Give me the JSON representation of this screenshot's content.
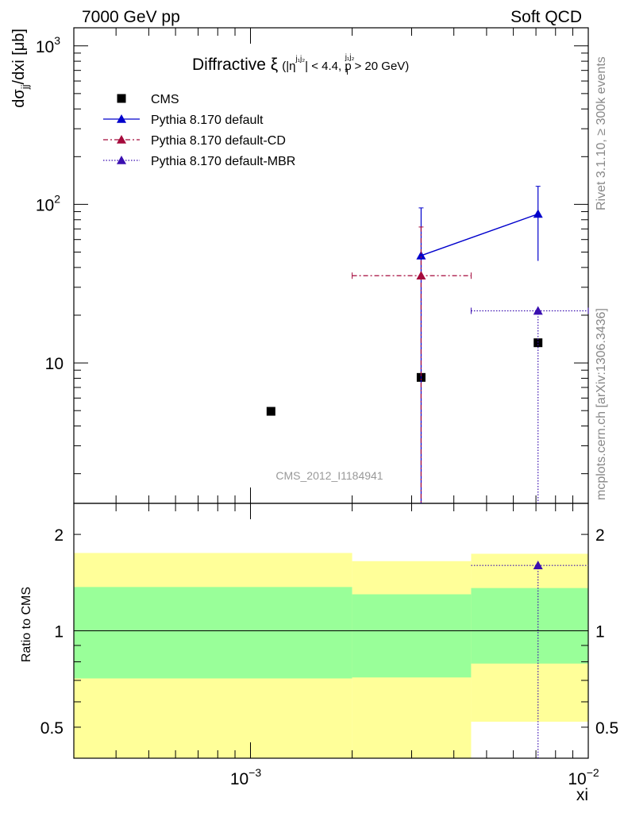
{
  "header": {
    "left": "7000 GeV pp",
    "right": "Soft QCD"
  },
  "side_labels": {
    "rivet": "Rivet 3.1.10, ≥ 300k events",
    "mcplots": "mcplots.cern.ch [arXiv:1306.3436]"
  },
  "colors": {
    "cms": "#000000",
    "default": "#0000cc",
    "cd": "#a50a3c",
    "mbr": "#3a0fb0",
    "band_inner": "#99ff99",
    "band_outer": "#ffff99"
  },
  "chart_data": [
    {
      "type": "scatter",
      "title_main": "Diffractive ξ",
      "title_cut": "(|η^{j₁j₂}| < 4.4, p_T^{j₁j₂} > 20 GeV)",
      "ylabel": "dσ_jj/dxi [μb]",
      "x_scale": "log",
      "y_scale": "log",
      "xlim": [
        0.0003,
        0.01
      ],
      "ylim": [
        1.3,
        1300
      ],
      "y_ticks": [
        {
          "value": 10,
          "label": "10"
        }
      ],
      "y_ticks_power": [
        {
          "value": 100,
          "mantissa": "10",
          "exp": "2"
        },
        {
          "value": 1000,
          "mantissa": "10",
          "exp": "3"
        }
      ],
      "watermark": "CMS_2012_I1184941",
      "legend_position": "top-left",
      "series": [
        {
          "name": "CMS",
          "style": "marker-square",
          "points": [
            {
              "x": 0.00115,
              "y": 4.95
            },
            {
              "x": 0.0032,
              "y": 8.1
            },
            {
              "x": 0.0071,
              "y": 13.4
            }
          ]
        },
        {
          "name": "Pythia 8.170 default",
          "style": "solid-line-triangle",
          "points": [
            {
              "x": 0.0032,
              "y": 47.5,
              "ylo": 1.0,
              "yhi": 95
            },
            {
              "x": 0.0071,
              "y": 87,
              "ylo": 44,
              "yhi": 130
            }
          ]
        },
        {
          "name": "Pythia 8.170 default-CD",
          "style": "dashdot-line-triangle",
          "points": [
            {
              "x": 0.0032,
              "y": 35.5,
              "xlo": 0.002,
              "xhi": 0.0045,
              "ylo": 1.0,
              "yhi": 72
            }
          ]
        },
        {
          "name": "Pythia 8.170 default-MBR",
          "style": "dotted-line-triangle",
          "points": [
            {
              "x": 0.0071,
              "y": 21.3,
              "xlo": 0.0045,
              "xhi": 0.01,
              "ylo": 1.0,
              "yhi": 21.3
            }
          ]
        }
      ]
    },
    {
      "type": "scatter",
      "ylabel": "Ratio to CMS",
      "xlabel": "xi",
      "x_scale": "log",
      "y_scale": "log",
      "xlim": [
        0.0003,
        0.01
      ],
      "ylim": [
        0.4,
        2.5
      ],
      "y_ticks": [
        {
          "value": 0.5,
          "label": "0.5"
        },
        {
          "value": 1,
          "label": "1"
        },
        {
          "value": 2,
          "label": "2"
        }
      ],
      "x_ticks_power": [
        {
          "value": 0.001,
          "mantissa": "10",
          "exp": "−3"
        },
        {
          "value": 0.01,
          "mantissa": "10",
          "exp": "−2"
        }
      ],
      "bands": [
        {
          "xlo": 0.0003,
          "xhi": 0.002,
          "outer": [
            0.4,
            1.75
          ],
          "inner": [
            0.71,
            1.37
          ]
        },
        {
          "xlo": 0.002,
          "xhi": 0.0045,
          "outer": [
            0.4,
            1.65
          ],
          "inner": [
            0.715,
            1.3
          ]
        },
        {
          "xlo": 0.0045,
          "xhi": 0.01,
          "outer": [
            0.52,
            1.74
          ],
          "inner": [
            0.79,
            1.36
          ]
        }
      ],
      "series": [
        {
          "name": "Pythia 8.170 default-MBR",
          "style": "dotted-line-triangle",
          "points": [
            {
              "x": 0.0071,
              "y": 1.6,
              "xlo": 0.0045,
              "xhi": 0.01,
              "ylo": 0.4,
              "yhi": 1.6
            }
          ]
        }
      ]
    }
  ]
}
